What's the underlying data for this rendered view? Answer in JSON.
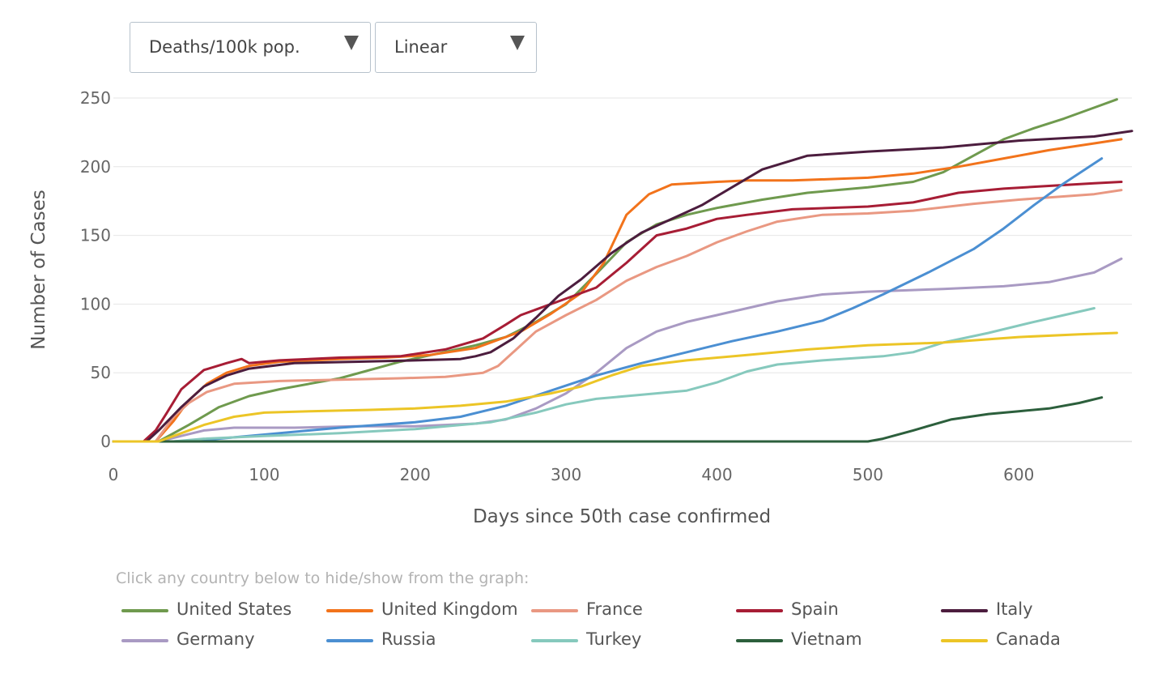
{
  "controls": {
    "metric": {
      "selected": "Deaths/100k pop."
    },
    "scale": {
      "selected": "Linear"
    }
  },
  "legend": {
    "hint": "Click any country below to hide/show from the graph:"
  },
  "chart_data": {
    "type": "line",
    "title": "",
    "xlabel": "Days since 50th case confirmed",
    "ylabel": "Number of Cases",
    "xlim": [
      0,
      675
    ],
    "ylim": [
      0,
      250
    ],
    "xticks": [
      0,
      100,
      200,
      300,
      400,
      500,
      600
    ],
    "yticks": [
      0,
      50,
      100,
      150,
      200,
      250
    ],
    "grid": true,
    "series": [
      {
        "name": "United States",
        "color": "#6f9a4e",
        "points": [
          [
            0,
            0
          ],
          [
            30,
            0
          ],
          [
            50,
            12
          ],
          [
            70,
            25
          ],
          [
            90,
            33
          ],
          [
            110,
            38
          ],
          [
            150,
            46
          ],
          [
            190,
            58
          ],
          [
            240,
            70
          ],
          [
            260,
            76
          ],
          [
            280,
            87
          ],
          [
            300,
            100
          ],
          [
            320,
            122
          ],
          [
            340,
            145
          ],
          [
            360,
            158
          ],
          [
            380,
            165
          ],
          [
            400,
            170
          ],
          [
            430,
            176
          ],
          [
            460,
            181
          ],
          [
            500,
            185
          ],
          [
            530,
            189
          ],
          [
            550,
            196
          ],
          [
            570,
            208
          ],
          [
            590,
            220
          ],
          [
            610,
            228
          ],
          [
            630,
            235
          ],
          [
            650,
            243
          ],
          [
            665,
            249
          ]
        ]
      },
      {
        "name": "United Kingdom",
        "color": "#f2731b",
        "points": [
          [
            0,
            0
          ],
          [
            28,
            0
          ],
          [
            40,
            15
          ],
          [
            50,
            30
          ],
          [
            62,
            42
          ],
          [
            75,
            50
          ],
          [
            90,
            55
          ],
          [
            110,
            58
          ],
          [
            150,
            60
          ],
          [
            180,
            61
          ],
          [
            210,
            63
          ],
          [
            240,
            68
          ],
          [
            270,
            80
          ],
          [
            290,
            93
          ],
          [
            310,
            108
          ],
          [
            325,
            130
          ],
          [
            340,
            165
          ],
          [
            355,
            180
          ],
          [
            370,
            187
          ],
          [
            400,
            189
          ],
          [
            420,
            190
          ],
          [
            450,
            190
          ],
          [
            500,
            192
          ],
          [
            530,
            195
          ],
          [
            560,
            200
          ],
          [
            590,
            206
          ],
          [
            620,
            212
          ],
          [
            650,
            217
          ],
          [
            668,
            220
          ]
        ]
      },
      {
        "name": "France",
        "color": "#e99882",
        "points": [
          [
            0,
            0
          ],
          [
            28,
            0
          ],
          [
            40,
            18
          ],
          [
            50,
            28
          ],
          [
            62,
            36
          ],
          [
            80,
            42
          ],
          [
            110,
            44
          ],
          [
            150,
            45
          ],
          [
            190,
            46
          ],
          [
            220,
            47
          ],
          [
            245,
            50
          ],
          [
            255,
            55
          ],
          [
            265,
            65
          ],
          [
            280,
            80
          ],
          [
            300,
            92
          ],
          [
            320,
            103
          ],
          [
            340,
            117
          ],
          [
            360,
            127
          ],
          [
            380,
            135
          ],
          [
            400,
            145
          ],
          [
            420,
            153
          ],
          [
            440,
            160
          ],
          [
            470,
            165
          ],
          [
            500,
            166
          ],
          [
            530,
            168
          ],
          [
            570,
            173
          ],
          [
            600,
            176
          ],
          [
            650,
            180
          ],
          [
            668,
            183
          ]
        ]
      },
      {
        "name": "Spain",
        "color": "#a71d35",
        "points": [
          [
            0,
            0
          ],
          [
            20,
            0
          ],
          [
            28,
            8
          ],
          [
            35,
            20
          ],
          [
            45,
            38
          ],
          [
            60,
            52
          ],
          [
            75,
            57
          ],
          [
            85,
            60
          ],
          [
            90,
            57
          ],
          [
            110,
            59
          ],
          [
            150,
            61
          ],
          [
            190,
            62
          ],
          [
            220,
            67
          ],
          [
            245,
            75
          ],
          [
            260,
            85
          ],
          [
            270,
            92
          ],
          [
            280,
            96
          ],
          [
            300,
            104
          ],
          [
            320,
            112
          ],
          [
            340,
            130
          ],
          [
            360,
            150
          ],
          [
            380,
            155
          ],
          [
            400,
            162
          ],
          [
            420,
            165
          ],
          [
            450,
            169
          ],
          [
            500,
            171
          ],
          [
            530,
            174
          ],
          [
            560,
            181
          ],
          [
            590,
            184
          ],
          [
            620,
            186
          ],
          [
            650,
            188
          ],
          [
            668,
            189
          ]
        ]
      },
      {
        "name": "Italy",
        "color": "#4c1d3e",
        "points": [
          [
            0,
            0
          ],
          [
            22,
            0
          ],
          [
            30,
            8
          ],
          [
            45,
            25
          ],
          [
            60,
            40
          ],
          [
            75,
            48
          ],
          [
            90,
            53
          ],
          [
            120,
            57
          ],
          [
            160,
            58
          ],
          [
            200,
            59
          ],
          [
            230,
            60
          ],
          [
            240,
            62
          ],
          [
            250,
            65
          ],
          [
            265,
            75
          ],
          [
            280,
            90
          ],
          [
            295,
            106
          ],
          [
            310,
            118
          ],
          [
            330,
            137
          ],
          [
            350,
            152
          ],
          [
            370,
            162
          ],
          [
            390,
            172
          ],
          [
            410,
            185
          ],
          [
            430,
            198
          ],
          [
            460,
            208
          ],
          [
            500,
            211
          ],
          [
            550,
            214
          ],
          [
            600,
            219
          ],
          [
            650,
            222
          ],
          [
            675,
            226
          ]
        ]
      },
      {
        "name": "Germany",
        "color": "#a99ac3",
        "points": [
          [
            0,
            0
          ],
          [
            30,
            0
          ],
          [
            45,
            4
          ],
          [
            60,
            8
          ],
          [
            80,
            10
          ],
          [
            120,
            10
          ],
          [
            160,
            11
          ],
          [
            200,
            11
          ],
          [
            240,
            13
          ],
          [
            260,
            16
          ],
          [
            280,
            24
          ],
          [
            300,
            35
          ],
          [
            320,
            50
          ],
          [
            340,
            68
          ],
          [
            360,
            80
          ],
          [
            380,
            87
          ],
          [
            400,
            92
          ],
          [
            420,
            97
          ],
          [
            440,
            102
          ],
          [
            470,
            107
          ],
          [
            500,
            109
          ],
          [
            550,
            111
          ],
          [
            590,
            113
          ],
          [
            620,
            116
          ],
          [
            650,
            123
          ],
          [
            668,
            133
          ]
        ]
      },
      {
        "name": "Russia",
        "color": "#4b8fd2",
        "points": [
          [
            0,
            0
          ],
          [
            40,
            0
          ],
          [
            60,
            1
          ],
          [
            80,
            3
          ],
          [
            100,
            5
          ],
          [
            150,
            10
          ],
          [
            200,
            14
          ],
          [
            230,
            18
          ],
          [
            260,
            26
          ],
          [
            290,
            37
          ],
          [
            320,
            48
          ],
          [
            350,
            57
          ],
          [
            380,
            65
          ],
          [
            410,
            73
          ],
          [
            440,
            80
          ],
          [
            470,
            88
          ],
          [
            490,
            97
          ],
          [
            510,
            107
          ],
          [
            540,
            123
          ],
          [
            570,
            140
          ],
          [
            590,
            155
          ],
          [
            610,
            172
          ],
          [
            630,
            188
          ],
          [
            655,
            206
          ]
        ]
      },
      {
        "name": "Turkey",
        "color": "#86c9bd",
        "points": [
          [
            0,
            0
          ],
          [
            40,
            0
          ],
          [
            60,
            2
          ],
          [
            100,
            4
          ],
          [
            150,
            6
          ],
          [
            200,
            9
          ],
          [
            250,
            14
          ],
          [
            280,
            21
          ],
          [
            300,
            27
          ],
          [
            320,
            31
          ],
          [
            340,
            33
          ],
          [
            360,
            35
          ],
          [
            380,
            37
          ],
          [
            400,
            43
          ],
          [
            420,
            51
          ],
          [
            440,
            56
          ],
          [
            470,
            59
          ],
          [
            510,
            62
          ],
          [
            530,
            65
          ],
          [
            550,
            72
          ],
          [
            580,
            79
          ],
          [
            610,
            87
          ],
          [
            630,
            92
          ],
          [
            650,
            97
          ]
        ]
      },
      {
        "name": "Vietnam",
        "color": "#2c5f3c",
        "points": [
          [
            0,
            0
          ],
          [
            500,
            0
          ],
          [
            510,
            2
          ],
          [
            530,
            8
          ],
          [
            555,
            16
          ],
          [
            580,
            20
          ],
          [
            600,
            22
          ],
          [
            620,
            24
          ],
          [
            640,
            28
          ],
          [
            655,
            32
          ]
        ]
      },
      {
        "name": "Canada",
        "color": "#ecc526",
        "points": [
          [
            0,
            0
          ],
          [
            30,
            0
          ],
          [
            45,
            6
          ],
          [
            60,
            12
          ],
          [
            80,
            18
          ],
          [
            100,
            21
          ],
          [
            130,
            22
          ],
          [
            170,
            23
          ],
          [
            200,
            24
          ],
          [
            230,
            26
          ],
          [
            260,
            29
          ],
          [
            290,
            35
          ],
          [
            310,
            40
          ],
          [
            330,
            48
          ],
          [
            350,
            55
          ],
          [
            380,
            59
          ],
          [
            420,
            63
          ],
          [
            460,
            67
          ],
          [
            500,
            70
          ],
          [
            550,
            72
          ],
          [
            600,
            76
          ],
          [
            640,
            78
          ],
          [
            665,
            79
          ]
        ]
      }
    ]
  }
}
